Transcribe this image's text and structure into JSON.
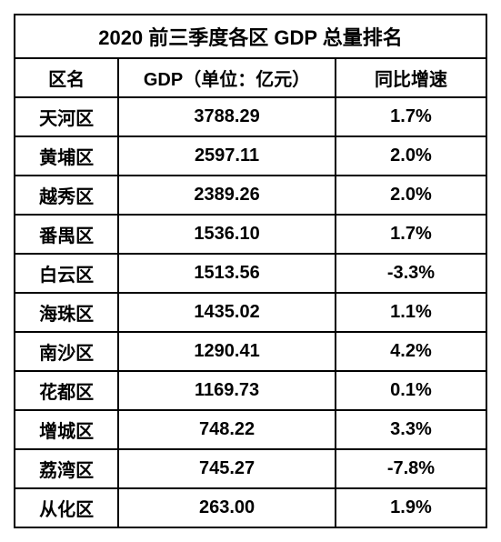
{
  "table": {
    "title": "2020 前三季度各区 GDP 总量排名",
    "columns": [
      "区名",
      "GDP（单位：亿元）",
      "同比增速"
    ],
    "rows": [
      [
        "天河区",
        "3788.29",
        "1.7%"
      ],
      [
        "黄埔区",
        "2597.11",
        "2.0%"
      ],
      [
        "越秀区",
        "2389.26",
        "2.0%"
      ],
      [
        "番禺区",
        "1536.10",
        "1.7%"
      ],
      [
        "白云区",
        "1513.56",
        "-3.3%"
      ],
      [
        "海珠区",
        "1435.02",
        "1.1%"
      ],
      [
        "南沙区",
        "1290.41",
        "4.2%"
      ],
      [
        "花都区",
        "1169.73",
        "0.1%"
      ],
      [
        "增城区",
        "748.22",
        "3.3%"
      ],
      [
        "荔湾区",
        "745.27",
        "-7.8%"
      ],
      [
        "从化区",
        "263.00",
        "1.9%"
      ]
    ],
    "border_color": "#000000",
    "text_color": "#000000",
    "background_color": "#ffffff",
    "title_fontsize": 22,
    "header_fontsize": 20,
    "cell_fontsize": 20,
    "column_widths_pct": [
      22,
      46,
      32
    ]
  }
}
